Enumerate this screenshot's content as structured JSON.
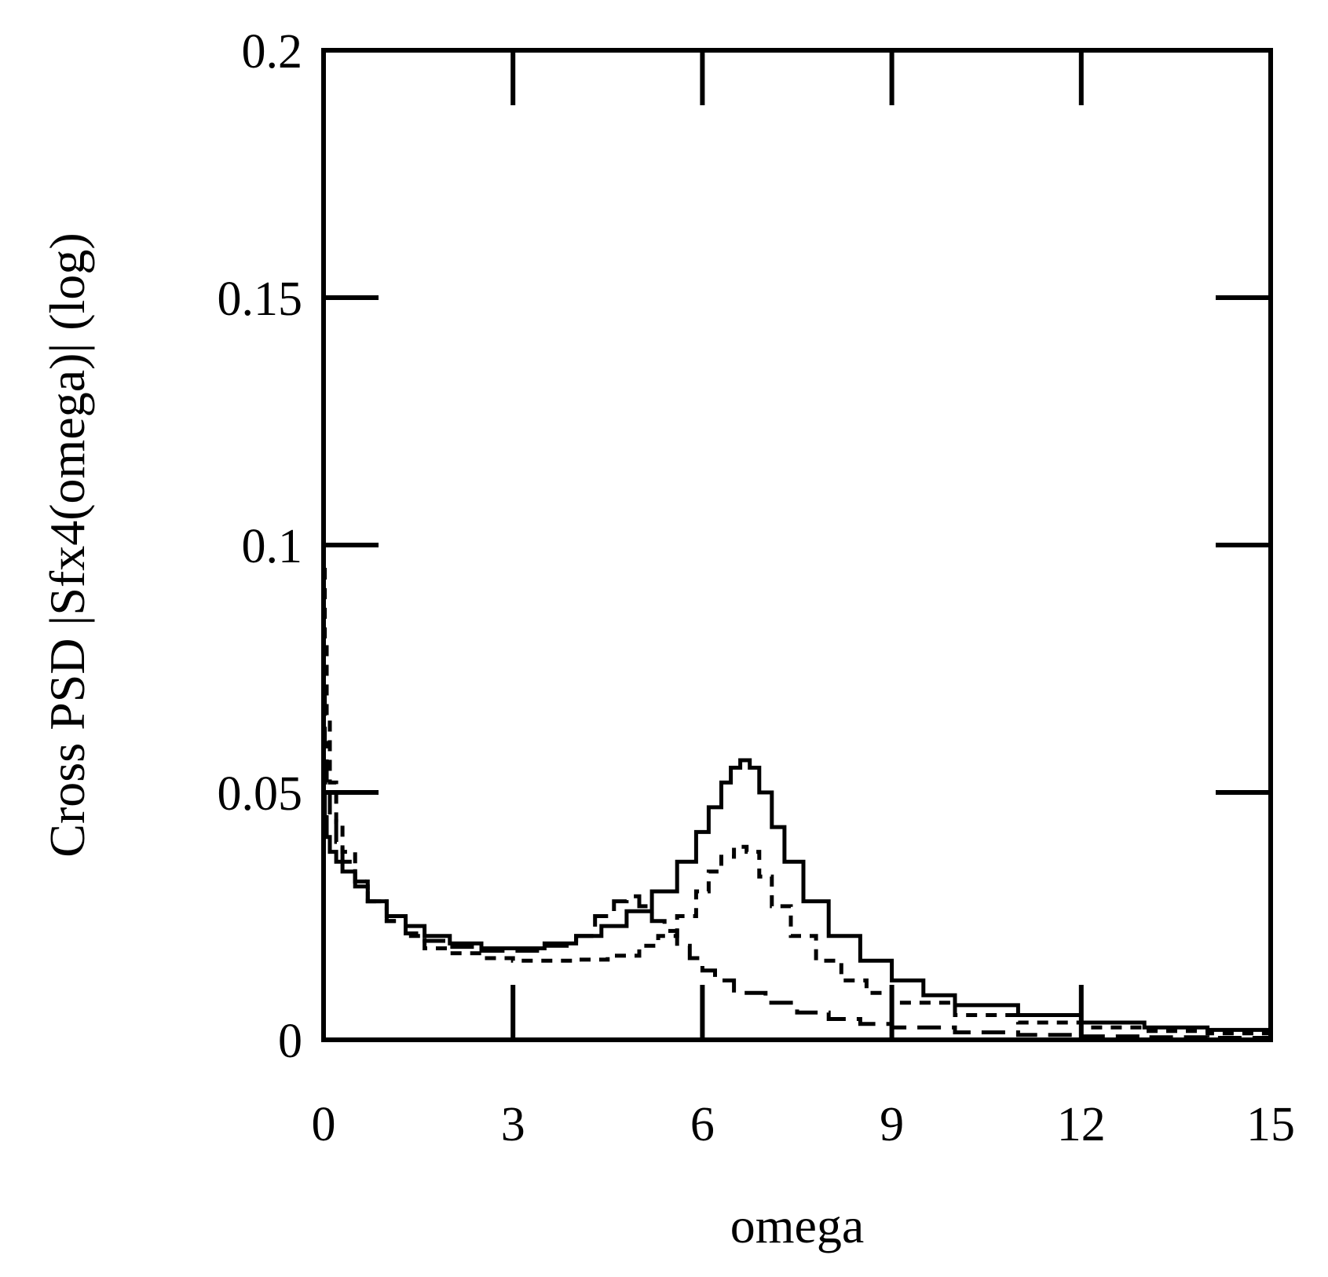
{
  "chart_data": {
    "type": "line",
    "title": "",
    "xlabel": "omega",
    "ylabel": "Cross PSD |Sfx4(omega)| (log)",
    "xlim": [
      0,
      15
    ],
    "ylim": [
      0,
      0.2
    ],
    "x_ticks": [
      "0",
      "3",
      "6",
      "9",
      "12",
      "15"
    ],
    "y_ticks": [
      "0",
      "0.05",
      "0.1",
      "0.15",
      "0.2"
    ],
    "grid": false,
    "legend": "none",
    "series": [
      {
        "name": "solid",
        "style": "solid",
        "x": [
          0,
          0.02,
          0.05,
          0.1,
          0.2,
          0.3,
          0.5,
          0.7,
          1.0,
          1.3,
          1.6,
          2.0,
          2.5,
          3.0,
          3.5,
          4.0,
          4.4,
          4.8,
          5.2,
          5.6,
          5.9,
          6.1,
          6.3,
          6.45,
          6.6,
          6.75,
          6.9,
          7.1,
          7.3,
          7.6,
          8.0,
          8.5,
          9.0,
          9.5,
          10.0,
          11.0,
          12.0,
          13.0,
          14.0,
          15.0
        ],
        "y": [
          0.05,
          0.045,
          0.041,
          0.038,
          0.036,
          0.034,
          0.031,
          0.028,
          0.025,
          0.023,
          0.021,
          0.0195,
          0.0185,
          0.0185,
          0.0195,
          0.021,
          0.023,
          0.026,
          0.03,
          0.036,
          0.042,
          0.047,
          0.052,
          0.055,
          0.0565,
          0.055,
          0.05,
          0.043,
          0.036,
          0.028,
          0.021,
          0.016,
          0.012,
          0.009,
          0.007,
          0.005,
          0.0035,
          0.0025,
          0.002,
          0.0015
        ]
      },
      {
        "name": "short-dashed",
        "style": "dashed",
        "x": [
          0,
          0.02,
          0.05,
          0.1,
          0.2,
          0.3,
          0.5,
          0.7,
          1.0,
          1.3,
          1.6,
          2.0,
          2.5,
          3.0,
          3.5,
          4.0,
          4.5,
          5.0,
          5.3,
          5.6,
          5.9,
          6.1,
          6.3,
          6.5,
          6.7,
          6.9,
          7.1,
          7.4,
          7.8,
          8.2,
          8.6,
          9.0,
          10.0,
          11.0,
          12.0,
          13.0,
          14.0,
          15.0
        ],
        "y": [
          0.095,
          0.08,
          0.065,
          0.052,
          0.044,
          0.038,
          0.032,
          0.028,
          0.024,
          0.021,
          0.0185,
          0.0175,
          0.0165,
          0.016,
          0.016,
          0.0162,
          0.017,
          0.019,
          0.021,
          0.025,
          0.03,
          0.034,
          0.037,
          0.039,
          0.038,
          0.033,
          0.027,
          0.021,
          0.016,
          0.012,
          0.0095,
          0.0075,
          0.005,
          0.0035,
          0.0025,
          0.0018,
          0.0013,
          0.001
        ]
      },
      {
        "name": "long-dashed",
        "style": "long-dashed",
        "x": [
          0,
          0.02,
          0.05,
          0.1,
          0.2,
          0.3,
          0.5,
          0.7,
          1.0,
          1.3,
          1.6,
          2.0,
          2.5,
          3.0,
          3.5,
          4.0,
          4.3,
          4.6,
          4.8,
          5.0,
          5.2,
          5.4,
          5.6,
          5.8,
          6.0,
          6.2,
          6.5,
          7.0,
          7.5,
          8.0,
          8.5,
          9.0,
          10.0,
          11.0,
          12.0,
          13.0,
          14.0,
          15.0
        ],
        "y": [
          0.07,
          0.06,
          0.052,
          0.045,
          0.04,
          0.036,
          0.032,
          0.028,
          0.024,
          0.0215,
          0.02,
          0.0188,
          0.018,
          0.018,
          0.019,
          0.021,
          0.025,
          0.028,
          0.029,
          0.027,
          0.024,
          0.022,
          0.019,
          0.0165,
          0.014,
          0.012,
          0.0095,
          0.0075,
          0.0055,
          0.0042,
          0.0032,
          0.0025,
          0.0015,
          0.001,
          0.0007,
          0.0005,
          0.0004,
          0.0003
        ]
      }
    ]
  }
}
